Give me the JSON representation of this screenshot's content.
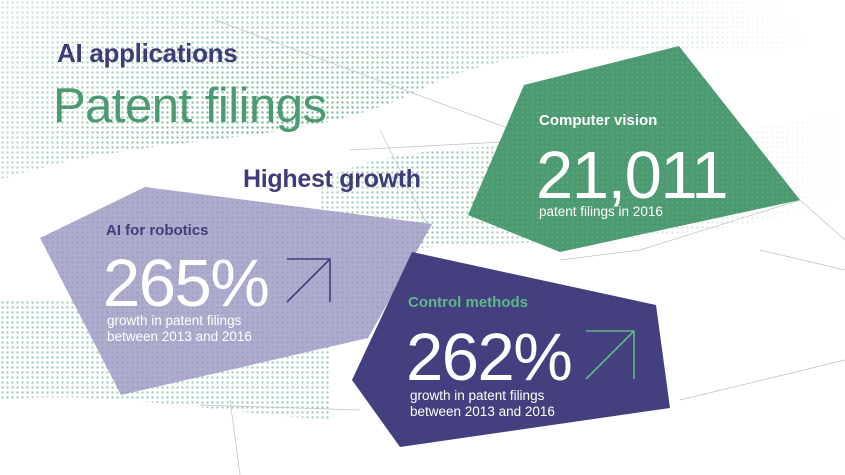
{
  "header": {
    "title": "AI applications",
    "subtitle": "Patent filings"
  },
  "section_title": "Highest growth",
  "cards": {
    "computer_vision": {
      "label": "Computer vision",
      "value": "21,011",
      "description": "patent filings in 2016",
      "color": "#4c9a71"
    },
    "robotics": {
      "label": "AI for robotics",
      "value": "265%",
      "description": "growth in patent filings between 2013 and 2016",
      "color": "#aeaccd",
      "icon": "arrow-up-right-icon"
    },
    "control": {
      "label": "Control methods",
      "value": "262%",
      "description": "growth in patent filings between 2013 and 2016",
      "color": "#443f7e",
      "icon": "arrow-up-right-icon"
    }
  },
  "colors": {
    "navy": "#403c79",
    "green": "#4c9a71",
    "lavender": "#aeaccd",
    "bright_green": "#5fb88a"
  }
}
